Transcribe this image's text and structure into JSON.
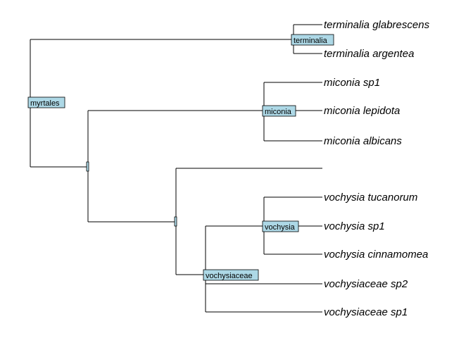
{
  "tree": {
    "node_fill": "#add8e6",
    "line_color": "#000000",
    "node_labels": {
      "root": "myrtales",
      "terminalia": "terminalia",
      "miconia": "miconia",
      "vochysia": "vochysia",
      "vochysiaceae": "vochysiaceae"
    },
    "tips": [
      "terminalia glabrescens",
      "terminalia argentea",
      "miconia sp1",
      "miconia lepidota",
      "miconia albicans",
      "",
      "vochysia tucanorum",
      "vochysia sp1",
      "vochysia cinnamomea",
      "vochysiaceae sp2",
      "vochysiaceae sp1"
    ]
  }
}
